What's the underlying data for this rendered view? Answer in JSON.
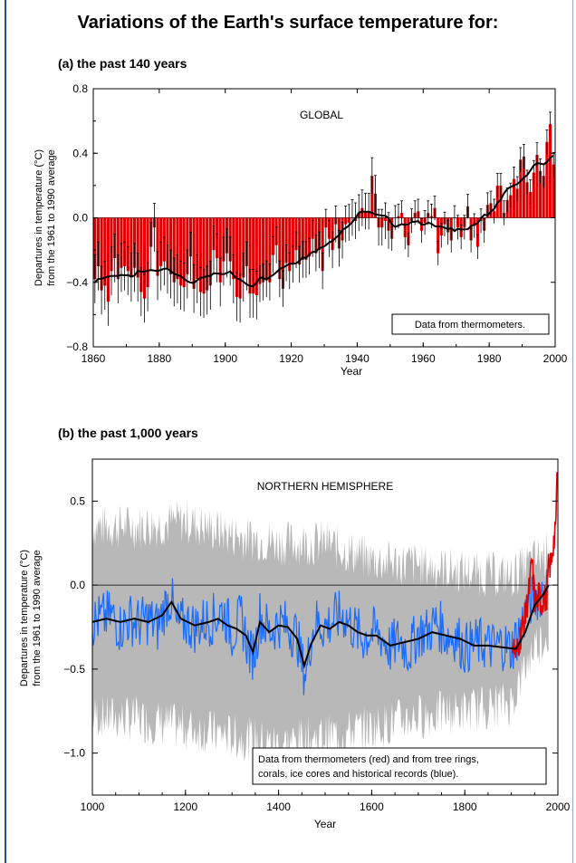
{
  "title": "Variations of the Earth's surface temperature for:",
  "chart_data": [
    {
      "type": "bar",
      "subtitle": "(a) the past 140 years",
      "region": "GLOBAL",
      "xlabel": "Year",
      "ylabel": "Departures in temperature (°C) from the 1961 to 1990 average",
      "note": "Data from thermometers.",
      "xlim": [
        1860,
        2000
      ],
      "ylim": [
        -0.8,
        0.8
      ],
      "xticks": [
        "1860",
        "1880",
        "1900",
        "1920",
        "1940",
        "1960",
        "1980",
        "2000"
      ],
      "yticks": [
        "−0.8",
        "−0.4",
        "0.0",
        "0.4",
        "0.8"
      ],
      "bar_color": "#e00000",
      "smooth_color": "#000000",
      "year_start": 1860,
      "year_end": 1999,
      "values": [
        -0.38,
        -0.3,
        -0.45,
        -0.42,
        -0.52,
        -0.33,
        -0.25,
        -0.38,
        -0.31,
        -0.3,
        -0.33,
        -0.37,
        -0.31,
        -0.37,
        -0.46,
        -0.5,
        -0.43,
        -0.18,
        -0.06,
        -0.36,
        -0.3,
        -0.27,
        -0.32,
        -0.35,
        -0.4,
        -0.38,
        -0.42,
        -0.43,
        -0.35,
        -0.24,
        -0.44,
        -0.38,
        -0.46,
        -0.47,
        -0.45,
        -0.42,
        -0.2,
        -0.25,
        -0.4,
        -0.27,
        -0.22,
        -0.27,
        -0.38,
        -0.49,
        -0.5,
        -0.37,
        -0.3,
        -0.47,
        -0.47,
        -0.48,
        -0.41,
        -0.4,
        -0.38,
        -0.4,
        -0.23,
        -0.17,
        -0.38,
        -0.44,
        -0.28,
        -0.33,
        -0.29,
        -0.2,
        -0.29,
        -0.26,
        -0.26,
        -0.24,
        -0.13,
        -0.22,
        -0.2,
        -0.33,
        -0.06,
        -0.13,
        -0.2,
        -0.04,
        -0.19,
        -0.14,
        -0.04,
        -0.03,
        0.0,
        -0.02,
        0.03,
        0.06,
        0.04,
        0.04,
        0.26,
        0.15,
        -0.06,
        -0.06,
        -0.02,
        -0.08,
        -0.13,
        0.0,
        0.01,
        0.03,
        -0.12,
        -0.17,
        -0.02,
        0.03,
        0.04,
        -0.08,
        -0.03,
        0.03,
        0.01,
        0.06,
        -0.22,
        -0.11,
        -0.04,
        -0.09,
        -0.14,
        0.0,
        -0.06,
        -0.12,
        -0.06,
        0.07,
        -0.14,
        -0.05,
        -0.18,
        -0.02,
        -0.08,
        0.08,
        0.09,
        0.04,
        0.2,
        0.2,
        0.03,
        0.11,
        0.14,
        0.24,
        0.18,
        0.36,
        0.38,
        0.22,
        0.16,
        0.28,
        0.39,
        0.29,
        0.26,
        0.47,
        0.58,
        0.33
      ],
      "error_bar": 0.15
    },
    {
      "type": "line",
      "subtitle": "(b) the past 1,000 years",
      "region": "NORTHERN HEMISPHERE",
      "xlabel": "Year",
      "ylabel": "Departures in temperature (°C) from the 1961 to 1990 average",
      "note_lines": [
        "Data from thermometers (red) and from tree rings,",
        "corals, ice cores and historical records (blue)."
      ],
      "xlim": [
        1000,
        2000
      ],
      "ylim": [
        -1.25,
        0.75
      ],
      "xticks": [
        "1000",
        "1200",
        "1400",
        "1600",
        "1800",
        "2000"
      ],
      "yticks": [
        "−1.0",
        "−0.5",
        "0.0",
        "0.5"
      ],
      "series": [
        {
          "name": "thermometers (red)",
          "color": "#e00000",
          "x": [
            1902,
            1910,
            1920,
            1930,
            1940,
            1944,
            1950,
            1955,
            1960,
            1965,
            1970,
            1975,
            1980,
            1985,
            1990,
            1995,
            1998,
            1999
          ],
          "values": [
            -0.32,
            -0.42,
            -0.3,
            -0.18,
            0.0,
            0.15,
            -0.08,
            -0.12,
            -0.05,
            -0.12,
            -0.06,
            -0.1,
            0.1,
            0.12,
            0.25,
            0.3,
            0.65,
            0.55
          ]
        },
        {
          "name": "tree rings, corals, ice cores and historical records (blue)",
          "color": "#1a6cff",
          "x": [
            1000,
            1020,
            1040,
            1060,
            1080,
            1100,
            1120,
            1140,
            1160,
            1170,
            1180,
            1200,
            1220,
            1240,
            1260,
            1280,
            1300,
            1320,
            1340,
            1350,
            1360,
            1380,
            1400,
            1420,
            1440,
            1450,
            1460,
            1470,
            1480,
            1500,
            1520,
            1540,
            1560,
            1580,
            1600,
            1620,
            1640,
            1660,
            1680,
            1700,
            1720,
            1740,
            1760,
            1780,
            1800,
            1820,
            1840,
            1860,
            1880,
            1900,
            1920,
            1940,
            1960,
            1980
          ],
          "values": [
            -0.22,
            -0.2,
            -0.18,
            -0.25,
            -0.2,
            -0.23,
            -0.2,
            -0.25,
            -0.1,
            -0.08,
            -0.25,
            -0.22,
            -0.25,
            -0.22,
            -0.2,
            -0.15,
            -0.28,
            -0.2,
            -0.42,
            -0.38,
            -0.18,
            -0.28,
            -0.22,
            -0.25,
            -0.3,
            -0.48,
            -0.52,
            -0.3,
            -0.22,
            -0.25,
            -0.2,
            -0.18,
            -0.25,
            -0.32,
            -0.28,
            -0.3,
            -0.38,
            -0.32,
            -0.4,
            -0.28,
            -0.28,
            -0.22,
            -0.3,
            -0.3,
            -0.38,
            -0.35,
            -0.35,
            -0.37,
            -0.35,
            -0.38,
            -0.25,
            -0.1,
            -0.05,
            0.0
          ]
        },
        {
          "name": "smoothed",
          "color": "#000000",
          "x": [
            1000,
            1030,
            1060,
            1090,
            1120,
            1150,
            1170,
            1190,
            1220,
            1250,
            1270,
            1290,
            1310,
            1330,
            1345,
            1360,
            1380,
            1400,
            1420,
            1440,
            1455,
            1470,
            1490,
            1510,
            1530,
            1550,
            1570,
            1590,
            1610,
            1640,
            1670,
            1700,
            1730,
            1760,
            1790,
            1820,
            1850,
            1880,
            1910,
            1930,
            1950,
            1970,
            1980
          ],
          "values": [
            -0.22,
            -0.2,
            -0.22,
            -0.2,
            -0.22,
            -0.18,
            -0.1,
            -0.2,
            -0.24,
            -0.22,
            -0.2,
            -0.24,
            -0.26,
            -0.3,
            -0.4,
            -0.22,
            -0.28,
            -0.24,
            -0.25,
            -0.32,
            -0.48,
            -0.35,
            -0.24,
            -0.26,
            -0.22,
            -0.24,
            -0.28,
            -0.3,
            -0.3,
            -0.36,
            -0.34,
            -0.32,
            -0.28,
            -0.3,
            -0.32,
            -0.36,
            -0.36,
            -0.37,
            -0.38,
            -0.28,
            -0.12,
            -0.05,
            0.0
          ]
        }
      ],
      "uncertainty": {
        "color": "#b8b8b8",
        "x": [
          1000,
          1100,
          1200,
          1300,
          1400,
          1500,
          1600,
          1700,
          1800,
          1900,
          1950,
          1980
        ],
        "upper": [
          0.35,
          0.35,
          0.38,
          0.3,
          0.25,
          0.25,
          0.15,
          0.12,
          0.08,
          0.05,
          0.15,
          0.2
        ],
        "lower": [
          -0.78,
          -0.8,
          -0.85,
          -0.9,
          -0.95,
          -0.9,
          -0.85,
          -0.78,
          -0.75,
          -0.7,
          -0.35,
          -0.3
        ]
      }
    }
  ]
}
